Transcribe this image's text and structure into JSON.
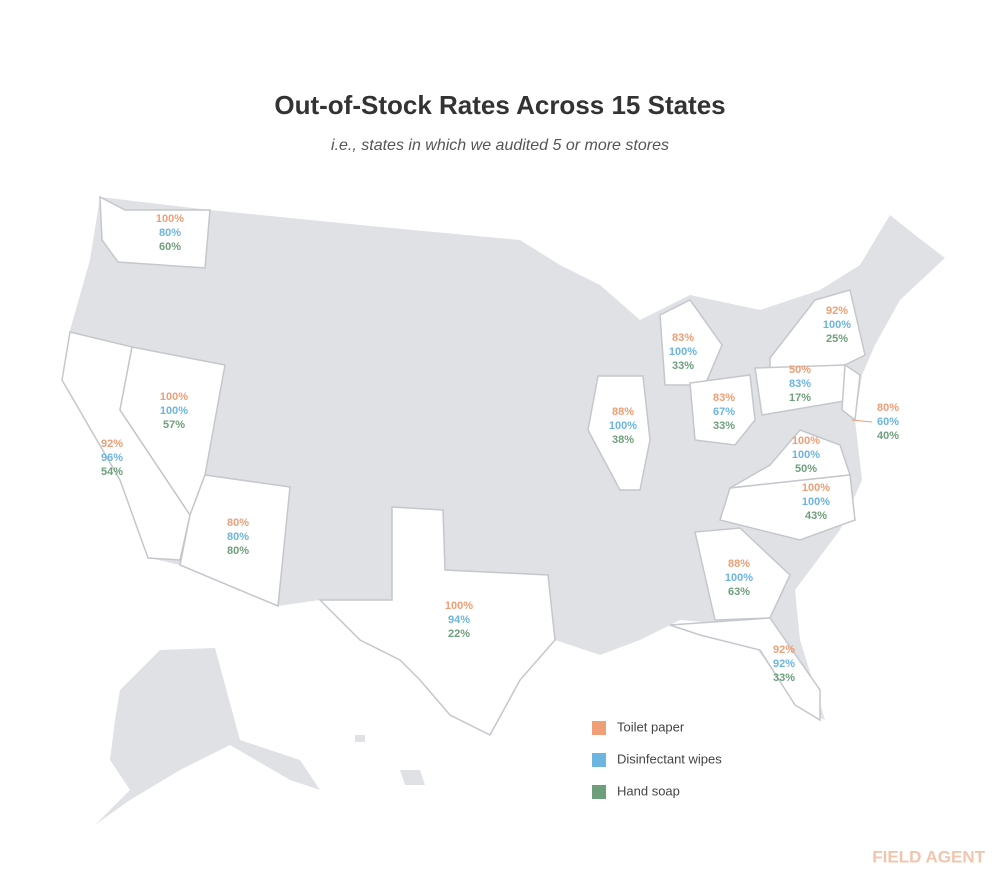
{
  "chart_data": {
    "type": "map",
    "title": "Out-of-Stock Rates Across 15 States",
    "subtitle": "i.e., states in which we audited 5 or more stores",
    "series": [
      {
        "name": "Toilet paper",
        "color": "#ef9e76",
        "values": [
          100,
          92,
          100,
          80,
          100,
          88,
          83,
          83,
          92,
          50,
          80,
          100,
          100,
          88,
          92
        ],
        "value_labels": [
          "100%",
          "92%",
          "100%",
          "80%",
          "100%",
          "88%",
          "83%",
          "83%",
          "92%",
          "50%",
          "80%",
          "100%",
          "100%",
          "88%",
          "92%"
        ]
      },
      {
        "name": "Disinfectant wipes",
        "color": "#6cb5e0",
        "values": [
          80,
          96,
          100,
          80,
          94,
          100,
          100,
          67,
          100,
          83,
          60,
          100,
          100,
          100,
          92
        ],
        "value_labels": [
          "80%",
          "96%",
          "100%",
          "80%",
          "94%",
          "100%",
          "100%",
          "67%",
          "100%",
          "83%",
          "60%",
          "100%",
          "100%",
          "100%",
          "92%"
        ]
      },
      {
        "name": "Hand soap",
        "color": "#6e9f7c",
        "values": [
          60,
          54,
          57,
          80,
          22,
          38,
          33,
          33,
          25,
          17,
          40,
          50,
          43,
          63,
          33
        ],
        "value_labels": [
          "60%",
          "54%",
          "57%",
          "80%",
          "22%",
          "38%",
          "33%",
          "33%",
          "25%",
          "17%",
          "40%",
          "50%",
          "43%",
          "63%",
          "33%"
        ]
      }
    ]
  },
  "brand": "FIELD AGENT"
}
